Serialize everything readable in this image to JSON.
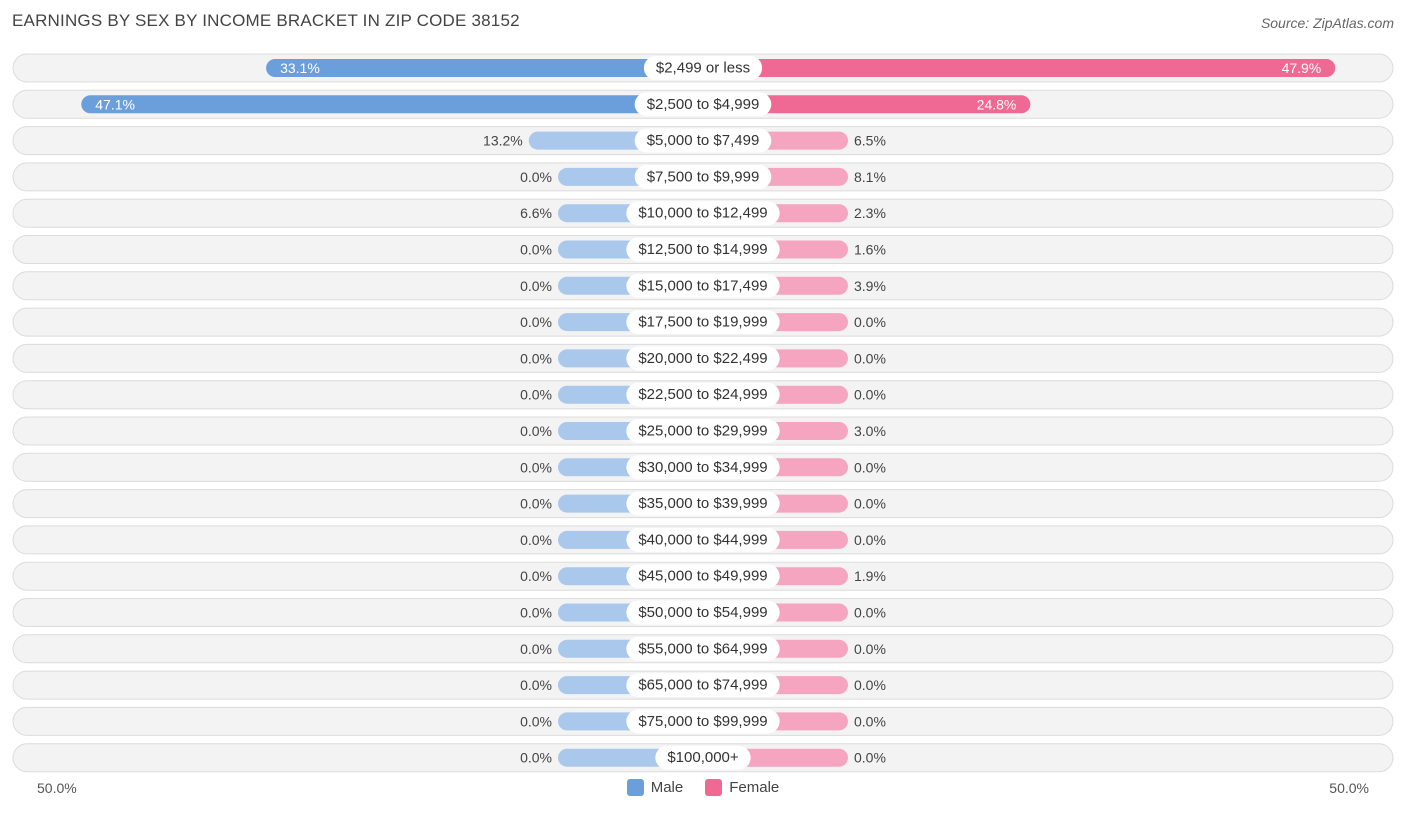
{
  "title": "EARNINGS BY SEX BY INCOME BRACKET IN ZIP CODE 38152",
  "source": "Source: ZipAtlas.com",
  "axis": {
    "left_label": "50.0%",
    "right_label": "50.0%"
  },
  "legend": {
    "male_label": "Male",
    "female_label": "Female",
    "male_color": "#6a9fdc",
    "female_color": "#f06894"
  },
  "chart_data": {
    "type": "bar",
    "orientation": "diverging-horizontal",
    "title": "EARNINGS BY SEX BY INCOME BRACKET IN ZIP CODE 38152",
    "xlim": [
      -50,
      50
    ],
    "categories": [
      "$2,499 or less",
      "$2,500 to $4,999",
      "$5,000 to $7,499",
      "$7,500 to $9,999",
      "$10,000 to $12,499",
      "$12,500 to $14,999",
      "$15,000 to $17,499",
      "$17,500 to $19,999",
      "$20,000 to $22,499",
      "$22,500 to $24,999",
      "$25,000 to $29,999",
      "$30,000 to $34,999",
      "$35,000 to $39,999",
      "$40,000 to $44,999",
      "$45,000 to $49,999",
      "$50,000 to $54,999",
      "$55,000 to $64,999",
      "$65,000 to $74,999",
      "$75,000 to $99,999",
      "$100,000+"
    ],
    "series": [
      {
        "name": "Male",
        "values": [
          33.1,
          47.1,
          13.2,
          0.0,
          6.6,
          0.0,
          0.0,
          0.0,
          0.0,
          0.0,
          0.0,
          0.0,
          0.0,
          0.0,
          0.0,
          0.0,
          0.0,
          0.0,
          0.0,
          0.0
        ],
        "labels": [
          "33.1%",
          "47.1%",
          "13.2%",
          "0.0%",
          "6.6%",
          "0.0%",
          "0.0%",
          "0.0%",
          "0.0%",
          "0.0%",
          "0.0%",
          "0.0%",
          "0.0%",
          "0.0%",
          "0.0%",
          "0.0%",
          "0.0%",
          "0.0%",
          "0.0%",
          "0.0%"
        ]
      },
      {
        "name": "Female",
        "values": [
          47.9,
          24.8,
          6.5,
          8.1,
          2.3,
          1.6,
          3.9,
          0.0,
          0.0,
          0.0,
          3.0,
          0.0,
          0.0,
          0.0,
          1.9,
          0.0,
          0.0,
          0.0,
          0.0,
          0.0
        ],
        "labels": [
          "47.9%",
          "24.8%",
          "6.5%",
          "8.1%",
          "2.3%",
          "1.6%",
          "3.9%",
          "0.0%",
          "0.0%",
          "0.0%",
          "3.0%",
          "0.0%",
          "0.0%",
          "0.0%",
          "1.9%",
          "0.0%",
          "0.0%",
          "0.0%",
          "0.0%",
          "0.0%"
        ]
      }
    ],
    "legend_position": "bottom-center"
  }
}
